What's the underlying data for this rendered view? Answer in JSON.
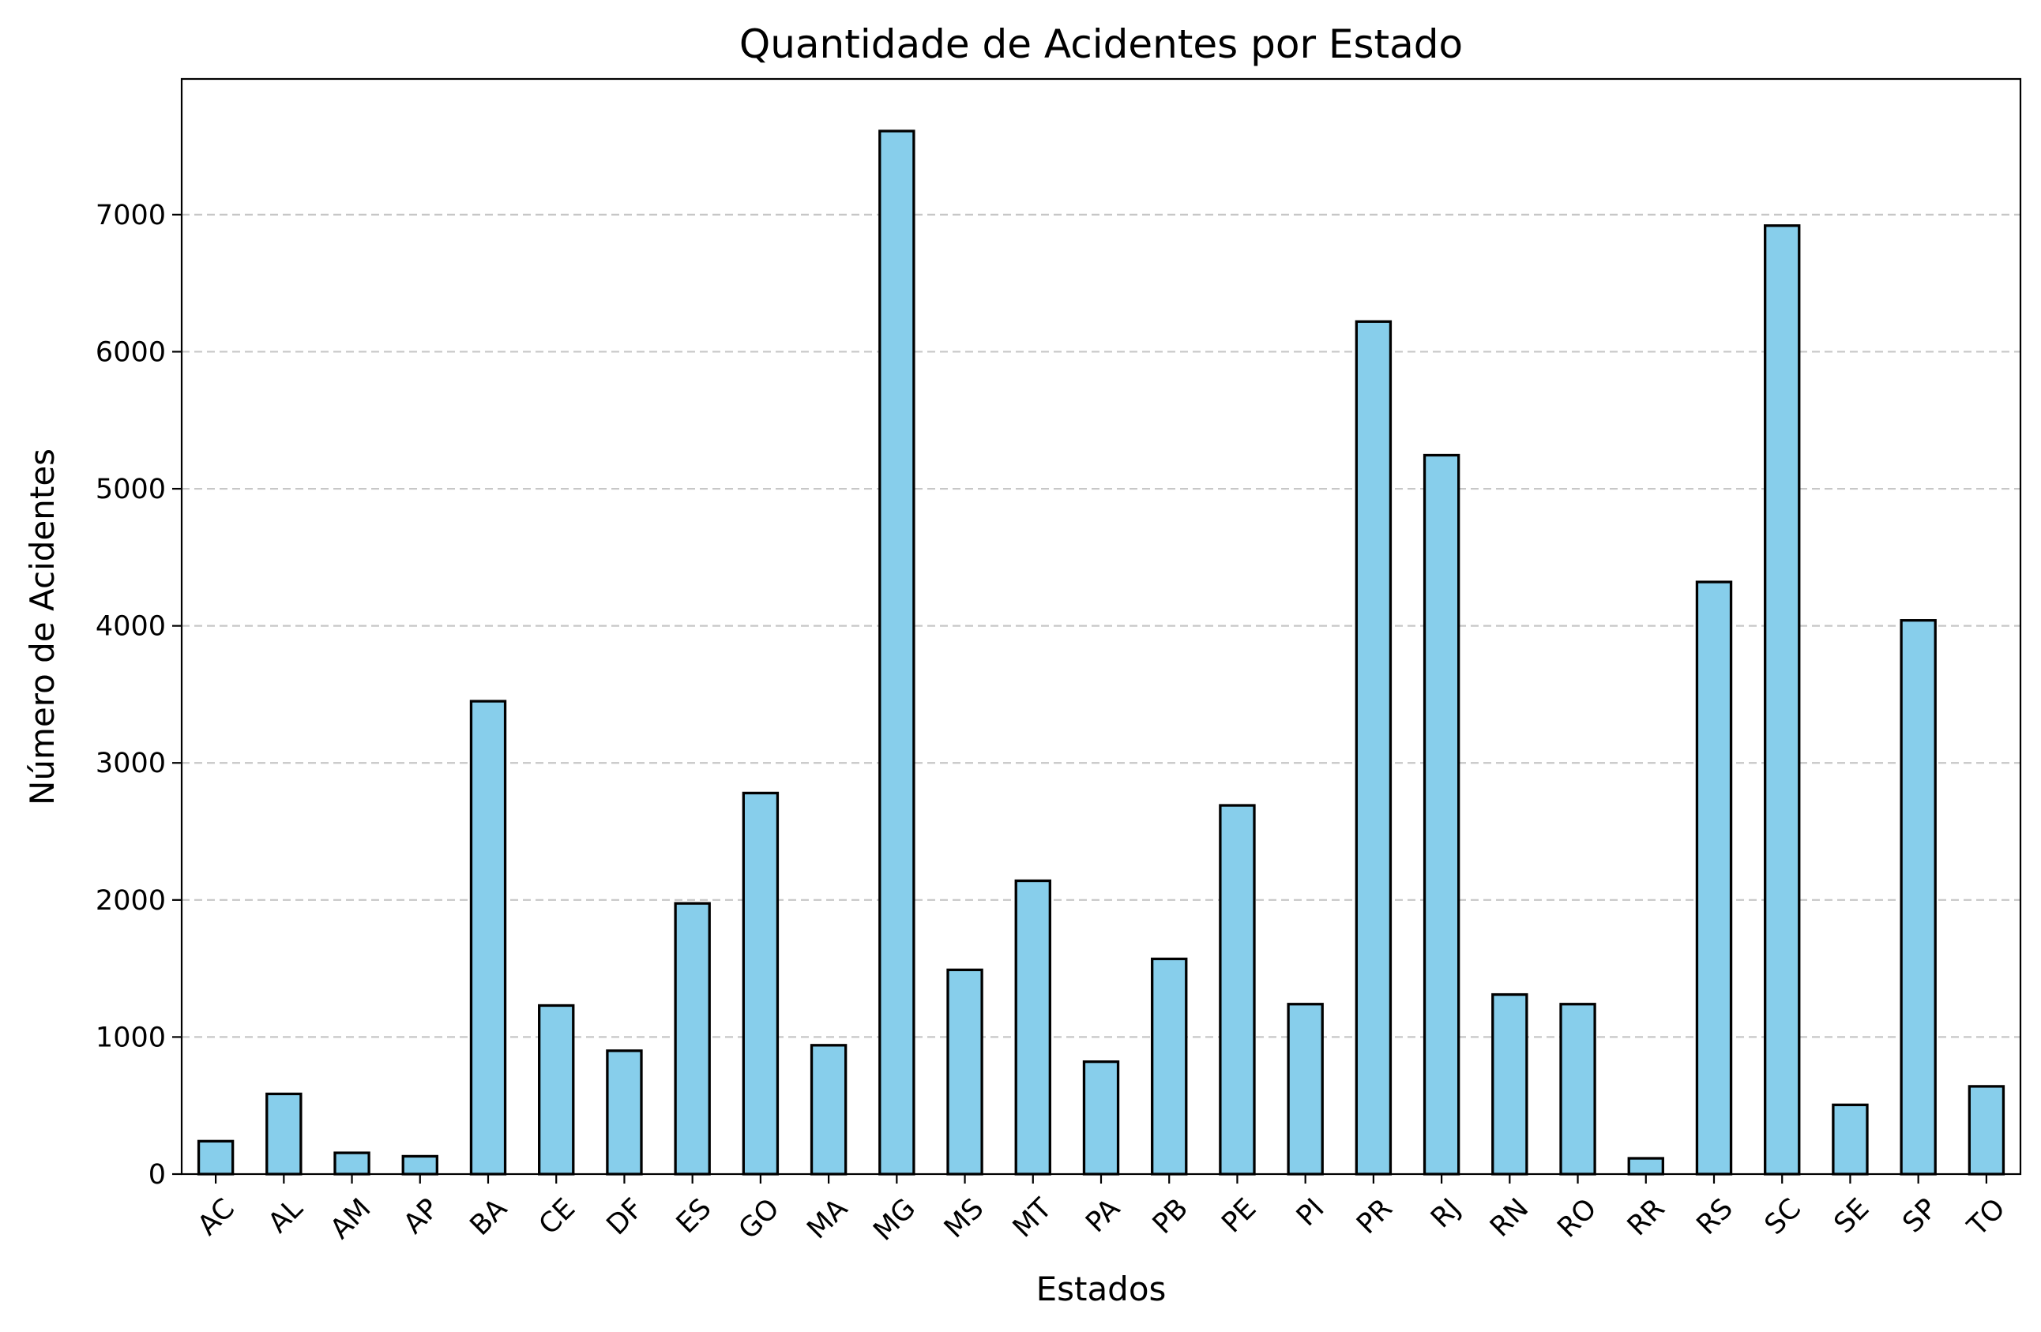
{
  "chart_data": {
    "type": "bar",
    "title": "Quantidade de Acidentes por Estado",
    "xlabel": "Estados",
    "ylabel": "Número de Acidentes",
    "categories": [
      "AC",
      "AL",
      "AM",
      "AP",
      "BA",
      "CE",
      "DF",
      "ES",
      "GO",
      "MA",
      "MG",
      "MS",
      "MT",
      "PA",
      "PB",
      "PE",
      "PI",
      "PR",
      "RJ",
      "RN",
      "RO",
      "RR",
      "RS",
      "SC",
      "SE",
      "SP",
      "TO"
    ],
    "values": [
      240,
      585,
      155,
      130,
      3450,
      1230,
      900,
      1975,
      2780,
      940,
      7610,
      1490,
      2140,
      820,
      1570,
      2690,
      1240,
      6220,
      5245,
      1310,
      1240,
      115,
      4320,
      6920,
      505,
      4040,
      640
    ],
    "ylim": [
      0,
      7990
    ],
    "yticks": [
      0,
      1000,
      2000,
      3000,
      4000,
      5000,
      6000,
      7000
    ],
    "ytick_labels": [
      "0",
      "1000",
      "2000",
      "3000",
      "4000",
      "5000",
      "6000",
      "7000"
    ],
    "grid": "horizontal dashed",
    "bar_color": "#87ceeb",
    "edge_color": "#000000"
  }
}
